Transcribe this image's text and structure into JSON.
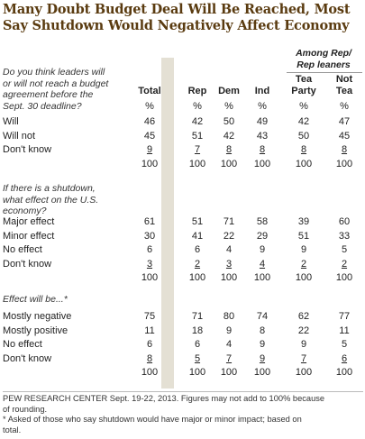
{
  "title_line1": "Many Doubt Budget Deal Will Be Reached, Most",
  "title_line2": "Say Shutdown Would Negatively Affect Economy",
  "group_header_line1": "Among Rep/",
  "group_header_line2": "Rep leaners",
  "columns": {
    "total": "Total",
    "rep": "Rep",
    "dem": "Dem",
    "ind": "Ind",
    "tea_line1": "Tea",
    "tea_line2": "Party",
    "nottea_line1": "Not",
    "nottea_line2": "Tea",
    "pct": "%"
  },
  "sections": [
    {
      "question": [
        "Do you think leaders will",
        "or will not reach a budget",
        "agreement before the",
        "Sept. 30 deadline?"
      ],
      "rows": [
        {
          "label": "Will",
          "values": [
            "46",
            "42",
            "50",
            "49",
            "42",
            "47"
          ],
          "underline": false
        },
        {
          "label": "Will not",
          "values": [
            "45",
            "51",
            "42",
            "43",
            "50",
            "45"
          ],
          "underline": false
        },
        {
          "label": "Don't know",
          "values": [
            "9",
            "7",
            "8",
            "8",
            "8",
            "8"
          ],
          "underline": true
        },
        {
          "label": "",
          "values": [
            "100",
            "100",
            "100",
            "100",
            "100",
            "100"
          ],
          "underline": false
        }
      ]
    },
    {
      "question": [
        "If there is a shutdown,",
        "what effect on the U.S.",
        "economy?"
      ],
      "rows": [
        {
          "label": "Major effect",
          "values": [
            "61",
            "51",
            "71",
            "58",
            "39",
            "60"
          ],
          "underline": false
        },
        {
          "label": "Minor effect",
          "values": [
            "30",
            "41",
            "22",
            "29",
            "51",
            "33"
          ],
          "underline": false
        },
        {
          "label": "No effect",
          "values": [
            "6",
            "6",
            "4",
            "9",
            "9",
            "5"
          ],
          "underline": false
        },
        {
          "label": "Don't know",
          "values": [
            "3",
            "2",
            "3",
            "4",
            "2",
            "2"
          ],
          "underline": true
        },
        {
          "label": "",
          "values": [
            "100",
            "100",
            "100",
            "100",
            "100",
            "100"
          ],
          "underline": false
        }
      ]
    },
    {
      "question": [
        "Effect will be...*"
      ],
      "rows": [
        {
          "label": "Mostly negative",
          "values": [
            "75",
            "71",
            "80",
            "74",
            "62",
            "77"
          ],
          "underline": false
        },
        {
          "label": "Mostly positive",
          "values": [
            "11",
            "18",
            "9",
            "8",
            "22",
            "11"
          ],
          "underline": false
        },
        {
          "label": "No effect",
          "values": [
            "6",
            "6",
            "4",
            "9",
            "9",
            "5"
          ],
          "underline": false
        },
        {
          "label": "Don't know",
          "values": [
            "8",
            "5",
            "7",
            "9",
            "7",
            "6"
          ],
          "underline": true
        },
        {
          "label": "",
          "values": [
            "100",
            "100",
            "100",
            "100",
            "100",
            "100"
          ],
          "underline": false
        }
      ]
    }
  ],
  "footnote_line1": "PEW RESEARCH CENTER Sept. 19-22, 2013. Figures may not add to 100% because",
  "footnote_line2": "of rounding.",
  "footnote_line3": "* Asked of those who say shutdown would have major or minor impact; based on",
  "footnote_line4": "total."
}
